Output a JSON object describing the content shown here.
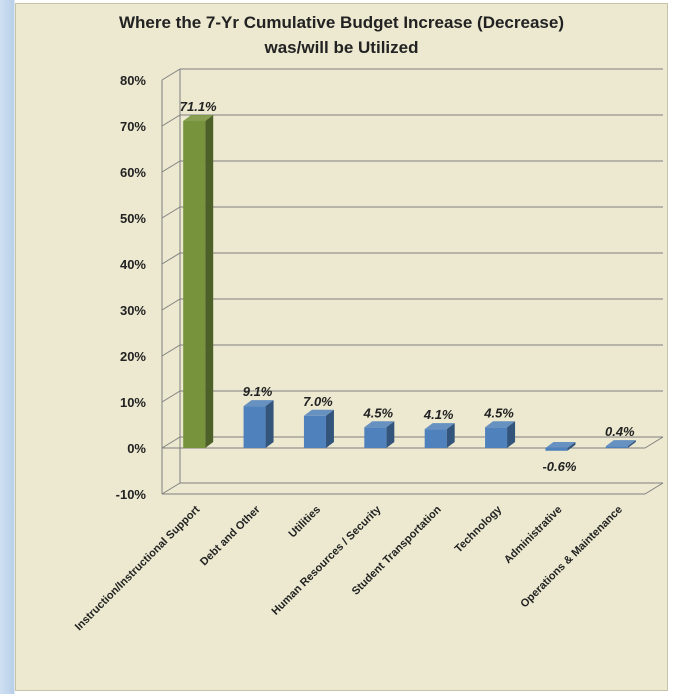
{
  "chart_data": {
    "type": "bar",
    "title_line1": "Where the 7-Yr Cumulative Budget Increase (Decrease)",
    "title_line2": "was/will be Utilized",
    "categories": [
      "Instruction/Instructional Support",
      "Debt and Other",
      "Utilities",
      "Human Resources / Security",
      "Student Transportation",
      "Technology",
      "Administrative",
      "Operations & Maintenance"
    ],
    "values": [
      71.1,
      9.1,
      7.0,
      4.5,
      4.1,
      4.5,
      -0.6,
      0.4
    ],
    "data_labels": [
      "71.1%",
      "9.1%",
      "7.0%",
      "4.5%",
      "4.1%",
      "4.5%",
      "-0.6%",
      "0.4%"
    ],
    "ylim": [
      -10,
      80
    ],
    "y_ticks": [
      -10,
      0,
      10,
      20,
      30,
      40,
      50,
      60,
      70,
      80
    ],
    "y_tick_labels": [
      "-10%",
      "0%",
      "10%",
      "20%",
      "30%",
      "40%",
      "50%",
      "60%",
      "70%",
      "80%"
    ],
    "grid": true,
    "bar_style": "3d",
    "colors": {
      "highlight": "#77933c",
      "default": "#4f81bd",
      "background": "#ece9d0",
      "grid": "#7f7f7f"
    }
  }
}
